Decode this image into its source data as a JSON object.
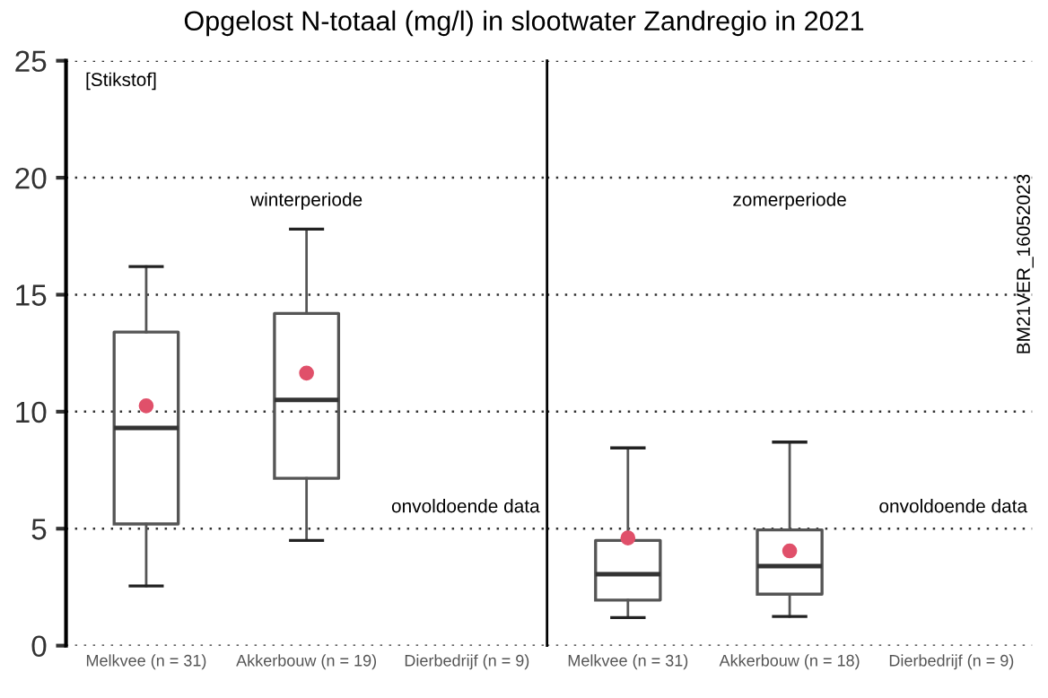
{
  "chart_data": [
    {
      "type": "box",
      "title": "Opgelost N-totaal (mg/l) in slootwater Zandregio in 2021",
      "categories": [
        "Melkvee (n = 31)",
        "Akkerbouw (n = 19)",
        "Dierbedrijf (n = 9)"
      ],
      "boxes": [
        {
          "low": 2.55,
          "q1": 5.2,
          "median": 9.3,
          "q3": 13.4,
          "high": 16.2
        },
        {
          "low": 4.5,
          "q1": 7.15,
          "median": 10.5,
          "q3": 14.2,
          "high": 17.8
        },
        null
      ],
      "series": [
        {
          "type": "scatter",
          "color": "#e0506a",
          "x": [
            "Melkvee (n = 31)",
            "Akkerbouw (n = 19)"
          ],
          "values": [
            10.25,
            11.65
          ]
        }
      ],
      "ylim": [
        0,
        25
      ],
      "yticks": [
        0,
        5,
        10,
        15,
        20,
        25
      ],
      "grid": "y",
      "color": "#555555",
      "annotations": [
        "[Stikstof]",
        "winterperiode",
        "onvoldoende data"
      ]
    },
    {
      "type": "box",
      "categories": [
        "Melkvee (n = 31)",
        "Akkerbouw (n = 18)",
        "Dierbedrijf (n = 9)"
      ],
      "boxes": [
        {
          "low": 1.2,
          "q1": 1.95,
          "median": 3.05,
          "q3": 4.5,
          "high": 8.45
        },
        {
          "low": 1.25,
          "q1": 2.2,
          "median": 3.4,
          "q3": 4.95,
          "high": 8.7
        },
        null
      ],
      "series": [
        {
          "type": "scatter",
          "color": "#e0506a",
          "x": [
            "Melkvee (n = 31)",
            "Akkerbouw (n = 18)"
          ],
          "values": [
            4.6,
            4.05
          ]
        }
      ],
      "ylim": [
        0,
        25
      ],
      "yticks": [
        0,
        5,
        10,
        15,
        20,
        25
      ],
      "grid": "y",
      "tick_labels": "x",
      "color": "#555555",
      "annotations": [
        "zomerperiode",
        "onvoldoende data",
        "BM21VER_16052023"
      ]
    }
  ]
}
